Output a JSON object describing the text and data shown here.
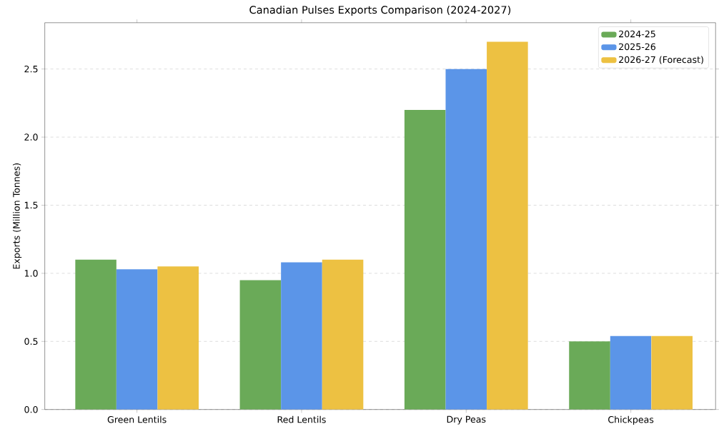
{
  "chart_data": {
    "type": "bar",
    "title": "Canadian Pulses Exports Comparison (2024-2027)",
    "ylabel": "Exports (Million Tonnes)",
    "categories": [
      "Green Lentils",
      "Red Lentils",
      "Dry Peas",
      "Chickpeas"
    ],
    "series": [
      {
        "name": "2024-25",
        "color": "#6aaa58",
        "values": [
          1.1,
          0.95,
          2.2,
          0.5
        ]
      },
      {
        "name": "2025-26",
        "color": "#5b95e8",
        "values": [
          1.03,
          1.08,
          2.5,
          0.54
        ]
      },
      {
        "name": "2026-27 (Forecast)",
        "color": "#edc142",
        "values": [
          1.05,
          1.1,
          2.7,
          0.54
        ]
      }
    ],
    "ylim": [
      0,
      2.84
    ],
    "yticks": [
      {
        "value": 0,
        "label": "0.0"
      },
      {
        "value": 0.5,
        "label": "0.5"
      },
      {
        "value": 1,
        "label": "1.0"
      },
      {
        "value": 1.5,
        "label": "1.5"
      },
      {
        "value": 2,
        "label": "2.0"
      },
      {
        "value": 2.5,
        "label": "2.5"
      }
    ],
    "grid": "y",
    "legend": "top right"
  }
}
